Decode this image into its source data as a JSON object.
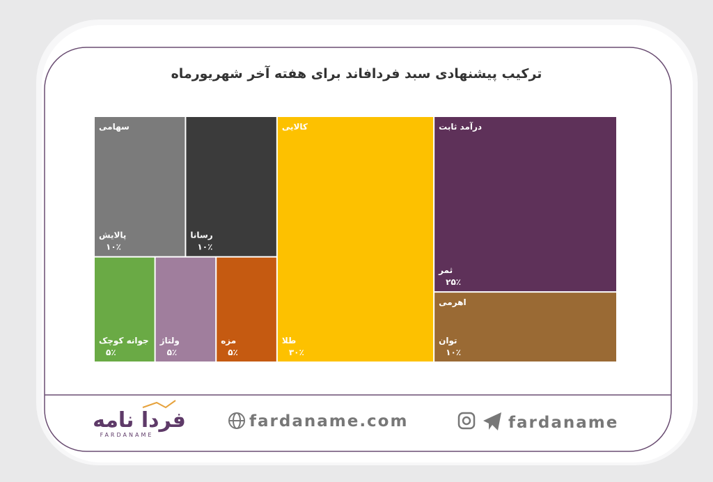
{
  "chart_data": {
    "type": "treemap",
    "title": "ترکیب پیشنهادی سبد فردافاند برای هفته  آخر شهریورماه",
    "series": [
      {
        "name": "سهامی",
        "categories": [
          "پالایش",
          "رسانا",
          "جوانه کوچک",
          "ولتاژ",
          "مزه"
        ],
        "values": [
          10,
          10,
          5,
          5,
          5
        ],
        "value_labels": [
          "۱۰٪",
          "۱۰٪",
          "۵٪",
          "۵٪",
          "۵٪"
        ],
        "colors": [
          "#7b7b7b",
          "#3b3b3b",
          "#6aaa45",
          "#a07e9d",
          "#c55a11"
        ]
      },
      {
        "name": "کالایی",
        "categories": [
          "طلا"
        ],
        "values": [
          30
        ],
        "value_labels": [
          "۳۰٪"
        ],
        "colors": [
          "#fdc100"
        ]
      },
      {
        "name": "درآمد ثابت",
        "categories": [
          "ثمر"
        ],
        "values": [
          25
        ],
        "value_labels": [
          "۲۵٪"
        ],
        "colors": [
          "#5e3159"
        ]
      },
      {
        "name": "اهرمی",
        "categories": [
          "توان"
        ],
        "values": [
          10
        ],
        "value_labels": [
          "۱۰٪"
        ],
        "colors": [
          "#9a6a34"
        ]
      }
    ]
  },
  "footer": {
    "logo": "فردا نامه",
    "logo_latin": "FARDANAME",
    "website": "fardaname.com",
    "social": "fardaname"
  }
}
